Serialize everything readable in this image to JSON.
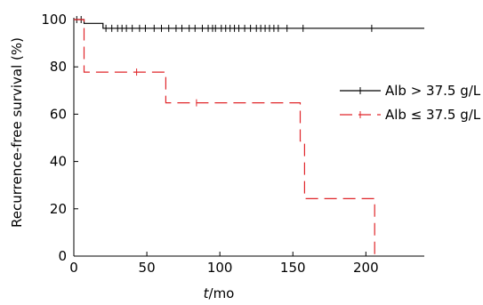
{
  "chart_data": {
    "type": "line",
    "title": "",
    "xlabel_italic": "t",
    "xlabel_rest": "/mo",
    "ylabel": "Recurrence-free survival (%)",
    "xlim": [
      0,
      240
    ],
    "ylim": [
      0,
      100
    ],
    "xticks": [
      0,
      50,
      100,
      150,
      200
    ],
    "yticks": [
      0,
      20,
      40,
      60,
      80,
      100
    ],
    "legend_position": "right",
    "grid": false,
    "series": [
      {
        "name": "Alb > 37.5 g/L",
        "color": "#000000",
        "style": "solid",
        "step_x": [
          0,
          7,
          7,
          20,
          20,
          240
        ],
        "step_y": [
          100,
          100,
          98.4,
          98.4,
          96.3,
          96.3
        ],
        "censor_x": [
          2,
          5,
          22,
          26,
          30,
          33,
          36,
          40,
          45,
          49,
          55,
          60,
          65,
          70,
          74,
          79,
          83,
          88,
          92,
          95,
          97,
          101,
          104,
          107,
          110,
          113,
          117,
          121,
          125,
          128,
          131,
          134,
          137,
          140,
          146,
          157,
          204
        ]
      },
      {
        "name": "Alb ≤ 37.5 g/L",
        "color": "#e0262a",
        "style": "dashed",
        "step_x": [
          0,
          7,
          7,
          63,
          63,
          155,
          155,
          158,
          158,
          206,
          206
        ],
        "step_y": [
          100,
          100,
          77.8,
          77.8,
          64.8,
          64.8,
          48.6,
          48.6,
          24.3,
          24.3,
          0
        ],
        "censor_x": [
          43,
          84
        ]
      }
    ]
  }
}
